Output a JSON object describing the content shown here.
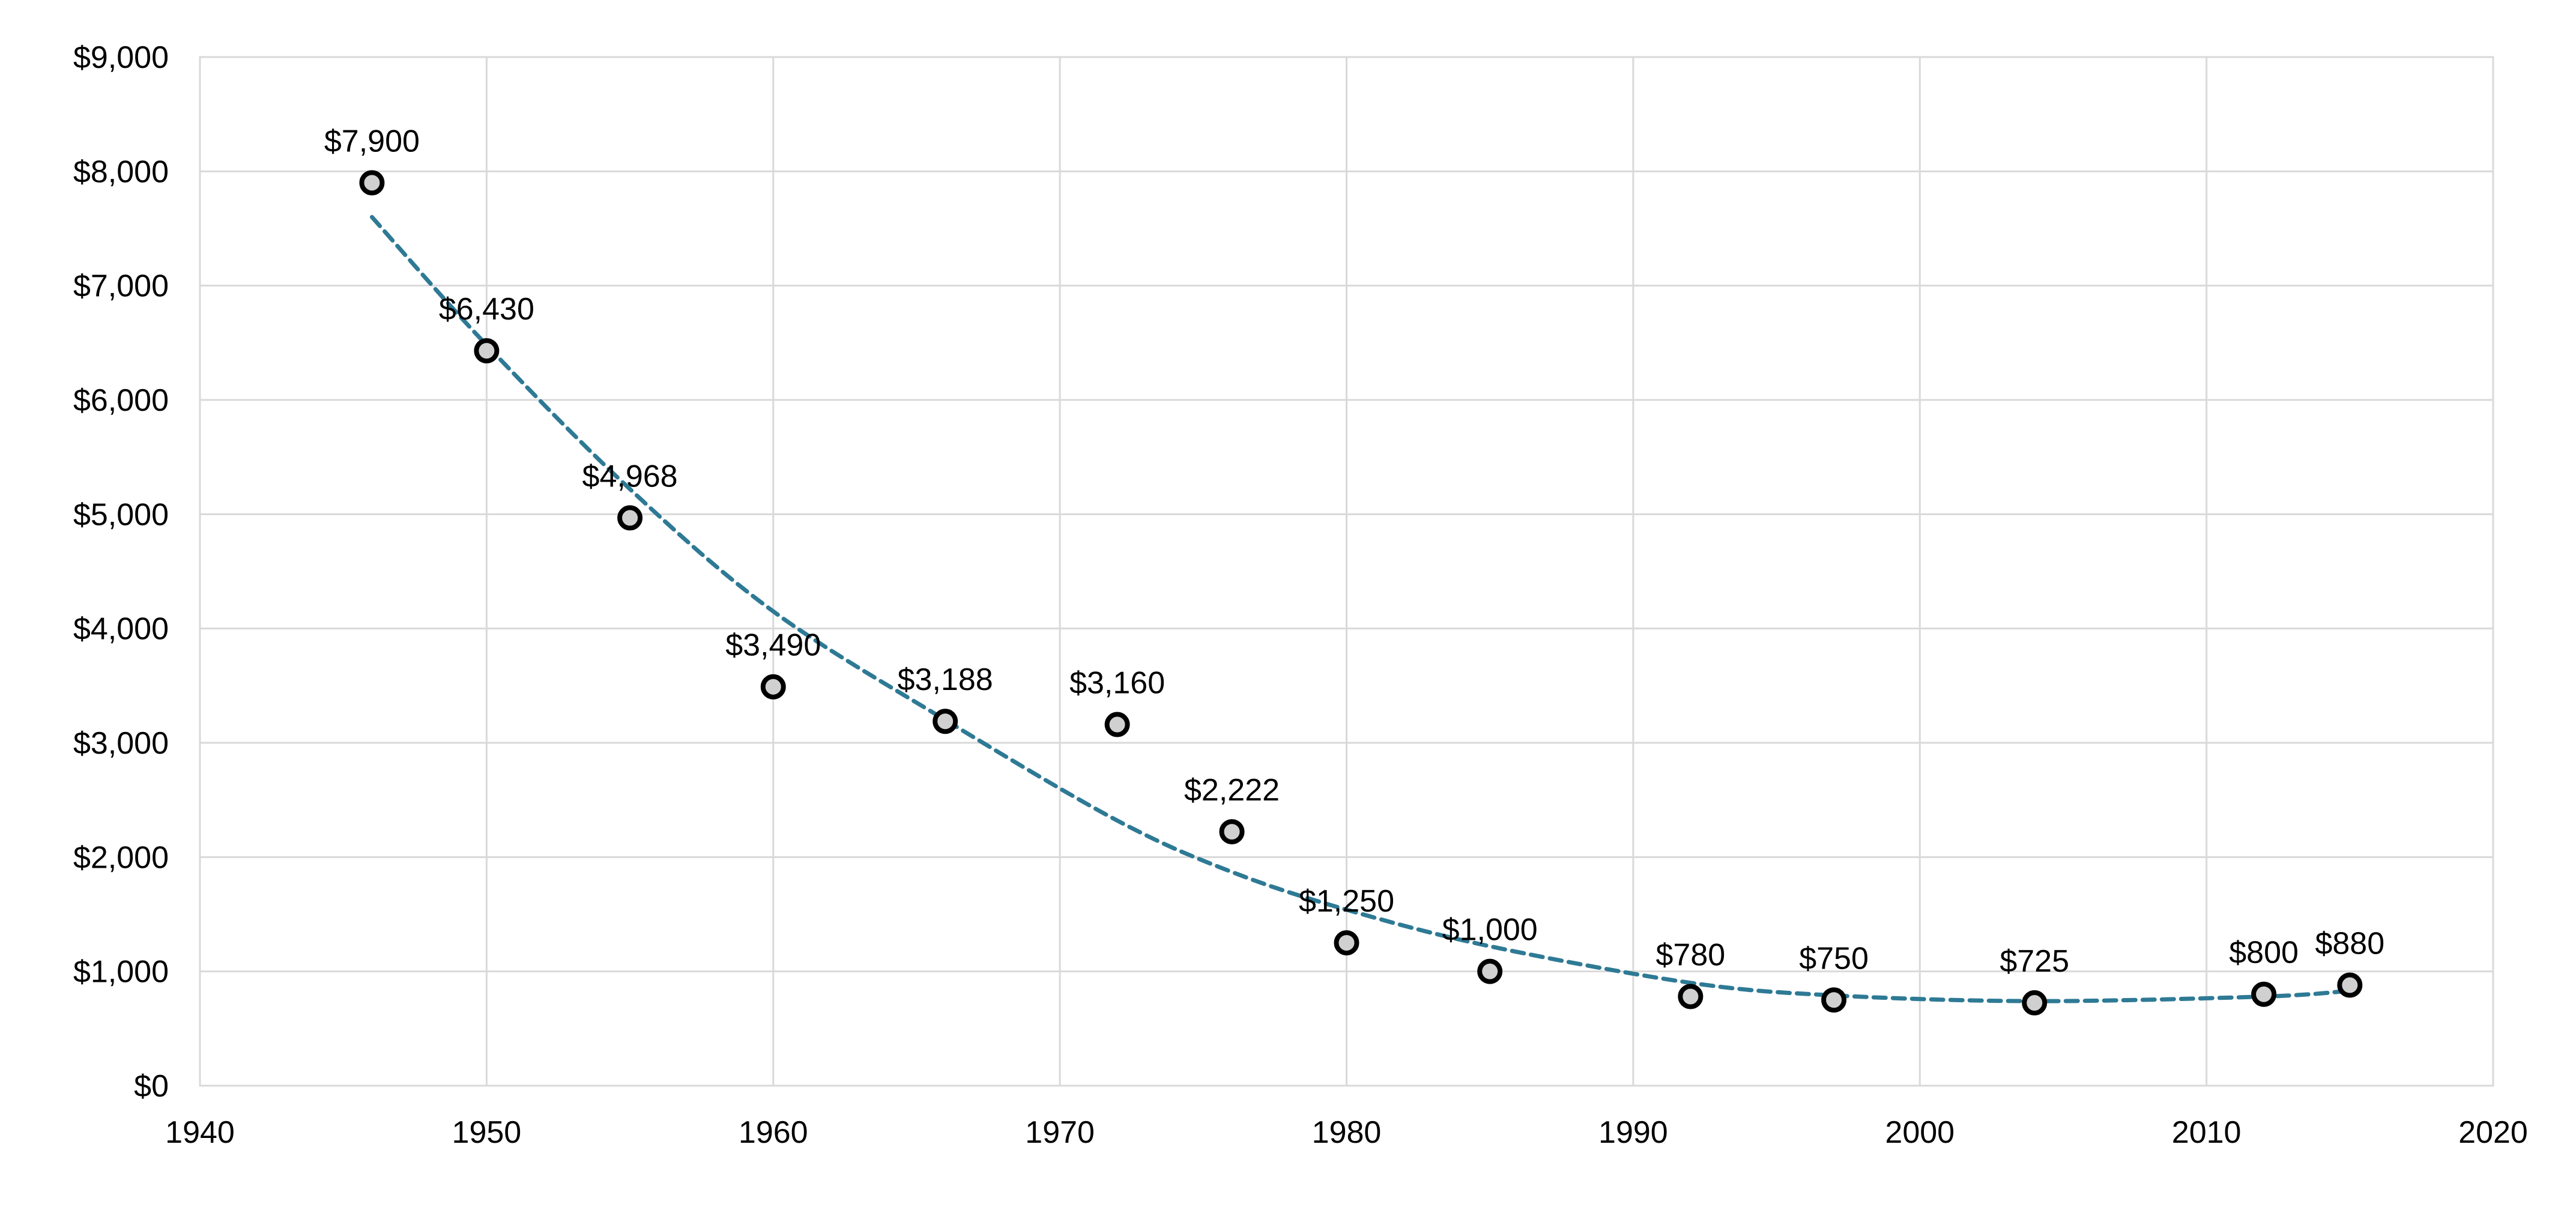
{
  "chart_data": {
    "type": "scatter",
    "title": "",
    "xlabel": "",
    "ylabel": "",
    "xlim": [
      1940,
      2020
    ],
    "ylim": [
      0,
      9000
    ],
    "x_ticks": [
      1940,
      1950,
      1960,
      1970,
      1980,
      1990,
      2000,
      2010,
      2020
    ],
    "y_ticks": [
      0,
      1000,
      2000,
      3000,
      4000,
      5000,
      6000,
      7000,
      8000,
      9000
    ],
    "x_tick_labels": [
      "1940",
      "1950",
      "1960",
      "1970",
      "1980",
      "1990",
      "2000",
      "2010",
      "2020"
    ],
    "y_tick_labels": [
      "$0",
      "$1,000",
      "$2,000",
      "$3,000",
      "$4,000",
      "$5,000",
      "$6,000",
      "$7,000",
      "$8,000",
      "$9,000"
    ],
    "grid": true,
    "legend": false,
    "series": [
      {
        "points": [
          {
            "x": 1946,
            "y": 7900,
            "label": "$7,900"
          },
          {
            "x": 1950,
            "y": 6430,
            "label": "$6,430"
          },
          {
            "x": 1955,
            "y": 4968,
            "label": "$4,968"
          },
          {
            "x": 1960,
            "y": 3490,
            "label": "$3,490"
          },
          {
            "x": 1966,
            "y": 3188,
            "label": "$3,188"
          },
          {
            "x": 1972,
            "y": 3160,
            "label": "$3,160"
          },
          {
            "x": 1976,
            "y": 2222,
            "label": "$2,222"
          },
          {
            "x": 1980,
            "y": 1250,
            "label": "$1,250"
          },
          {
            "x": 1985,
            "y": 1000,
            "label": "$1,000"
          },
          {
            "x": 1992,
            "y": 780,
            "label": "$780"
          },
          {
            "x": 1997,
            "y": 750,
            "label": "$750"
          },
          {
            "x": 2004,
            "y": 725,
            "label": "$725"
          },
          {
            "x": 2012,
            "y": 800,
            "label": "$800"
          },
          {
            "x": 2015,
            "y": 880,
            "label": "$880"
          }
        ]
      }
    ],
    "trendline": {
      "style": "dashed",
      "kind": "polynomial",
      "x_range": [
        1946,
        2015
      ],
      "points": [
        {
          "x": 1946,
          "y": 7600
        },
        {
          "x": 1950,
          "y": 6480
        },
        {
          "x": 1955,
          "y": 5220
        },
        {
          "x": 1960,
          "y": 4150
        },
        {
          "x": 1966,
          "y": 3200
        },
        {
          "x": 1972,
          "y": 2320
        },
        {
          "x": 1976,
          "y": 1870
        },
        {
          "x": 1980,
          "y": 1540
        },
        {
          "x": 1985,
          "y": 1220
        },
        {
          "x": 1992,
          "y": 900
        },
        {
          "x": 1997,
          "y": 790
        },
        {
          "x": 2004,
          "y": 740
        },
        {
          "x": 2012,
          "y": 780
        },
        {
          "x": 2015,
          "y": 830
        }
      ]
    },
    "colors": {
      "trendline": "#2e7a95",
      "marker_fill": "#d0d0d0",
      "marker_edge": "#000000",
      "grid": "#d9d9d9"
    }
  }
}
